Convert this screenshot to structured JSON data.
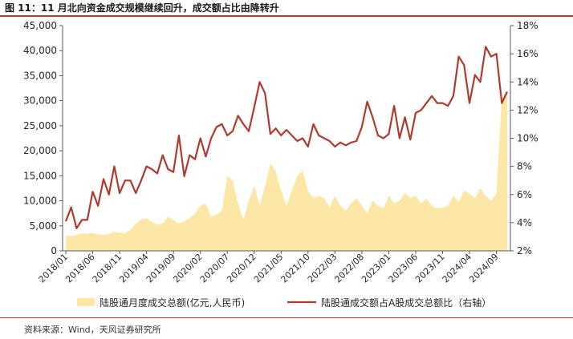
{
  "title": "图 11：11 月北向资金成交规模继续回升，成交额占比由降转升",
  "source": "资料来源：Wind，天风证券研究所",
  "colors": {
    "area": "#fde7a6",
    "line": "#b03a2e",
    "accent": "#c0392b",
    "axis": "#595959"
  },
  "chart_data": {
    "type": "area",
    "y_left": {
      "min": 0,
      "max": 45000,
      "ticks": [
        "0",
        "5,000",
        "10,000",
        "15,000",
        "20,000",
        "25,000",
        "30,000",
        "35,000",
        "40,000",
        "45,000"
      ]
    },
    "y_right": {
      "min": 2,
      "max": 18,
      "ticks": [
        "2%",
        "4%",
        "6%",
        "8%",
        "10%",
        "12%",
        "14%",
        "16%",
        "18%"
      ]
    },
    "x_ticks": [
      "2018/01",
      "2018/06",
      "2018/11",
      "2019/04",
      "2019/09",
      "2020/02",
      "2020/07",
      "2020/12",
      "2021/05",
      "2021/10",
      "2022/03",
      "2022/08",
      "2023/01",
      "2023/06",
      "2023/11",
      "2024/04",
      "2024/09"
    ],
    "months": [
      "2018/01",
      "2018/02",
      "2018/03",
      "2018/04",
      "2018/05",
      "2018/06",
      "2018/07",
      "2018/08",
      "2018/09",
      "2018/10",
      "2018/11",
      "2018/12",
      "2019/01",
      "2019/02",
      "2019/03",
      "2019/04",
      "2019/05",
      "2019/06",
      "2019/07",
      "2019/08",
      "2019/09",
      "2019/10",
      "2019/11",
      "2019/12",
      "2020/01",
      "2020/02",
      "2020/03",
      "2020/04",
      "2020/05",
      "2020/06",
      "2020/07",
      "2020/08",
      "2020/09",
      "2020/10",
      "2020/11",
      "2020/12",
      "2021/01",
      "2021/02",
      "2021/03",
      "2021/04",
      "2021/05",
      "2021/06",
      "2021/07",
      "2021/08",
      "2021/09",
      "2021/10",
      "2021/11",
      "2021/12",
      "2022/01",
      "2022/02",
      "2022/03",
      "2022/04",
      "2022/05",
      "2022/06",
      "2022/07",
      "2022/08",
      "2022/09",
      "2022/10",
      "2022/11",
      "2022/12",
      "2023/01",
      "2023/02",
      "2023/03",
      "2023/04",
      "2023/05",
      "2023/06",
      "2023/07",
      "2023/08",
      "2023/09",
      "2023/10",
      "2023/11",
      "2023/12",
      "2024/01",
      "2024/02",
      "2024/03",
      "2024/04",
      "2024/05",
      "2024/06",
      "2024/07",
      "2024/08",
      "2024/09",
      "2024/10",
      "2024/11"
    ],
    "series": [
      {
        "name": "陆股通月度成交总额(亿元,人民币)",
        "axis": "left",
        "values": [
          3000,
          2900,
          3200,
          3500,
          3400,
          3600,
          3300,
          3100,
          3400,
          3800,
          3600,
          3500,
          4200,
          5500,
          6300,
          6500,
          5800,
          5200,
          5500,
          6800,
          6200,
          5400,
          6000,
          6500,
          7500,
          9000,
          9500,
          6800,
          7200,
          8000,
          15000,
          14000,
          9500,
          6200,
          10000,
          13000,
          9000,
          13000,
          17500,
          16000,
          12000,
          9000,
          12000,
          15000,
          16000,
          12000,
          10500,
          11000,
          10500,
          8600,
          11000,
          9000,
          8000,
          9500,
          10500,
          9000,
          7500,
          10000,
          9000,
          8500,
          11000,
          9500,
          10000,
          11500,
          10500,
          11000,
          9500,
          10500,
          9000,
          8500,
          8600,
          9000,
          11000,
          9800,
          12000,
          11500,
          10500,
          12500,
          11000,
          10000,
          11500,
          30500,
          32000
        ]
      },
      {
        "name": "陆股通成交额占A股成交总额比（右轴）",
        "axis": "right",
        "values": [
          4.1,
          5.1,
          3.6,
          4.2,
          4.2,
          6.2,
          5.2,
          7.1,
          6.0,
          8.0,
          6.1,
          7.0,
          7.0,
          6.1,
          7.0,
          8.0,
          7.8,
          7.5,
          8.8,
          7.8,
          7.6,
          10.2,
          7.3,
          8.8,
          8.5,
          10.0,
          8.7,
          10.0,
          10.8,
          11.0,
          10.2,
          10.5,
          11.6,
          11.0,
          10.5,
          12.2,
          14.0,
          13.2,
          10.3,
          10.7,
          10.2,
          10.6,
          10.2,
          9.8,
          10.0,
          9.4,
          11.0,
          10.2,
          10.0,
          9.8,
          9.4,
          9.7,
          9.5,
          9.7,
          9.8,
          10.8,
          12.6,
          11.5,
          10.2,
          10.0,
          10.3,
          12.3,
          10.0,
          11.5,
          9.9,
          11.8,
          12.0,
          12.5,
          13.0,
          12.5,
          12.5,
          12.3,
          13.0,
          15.8,
          15.2,
          12.5,
          14.5,
          14.0,
          16.5,
          15.8,
          16.0,
          12.5,
          13.3
        ]
      }
    ],
    "legend_position": "bottom",
    "grid": false
  }
}
